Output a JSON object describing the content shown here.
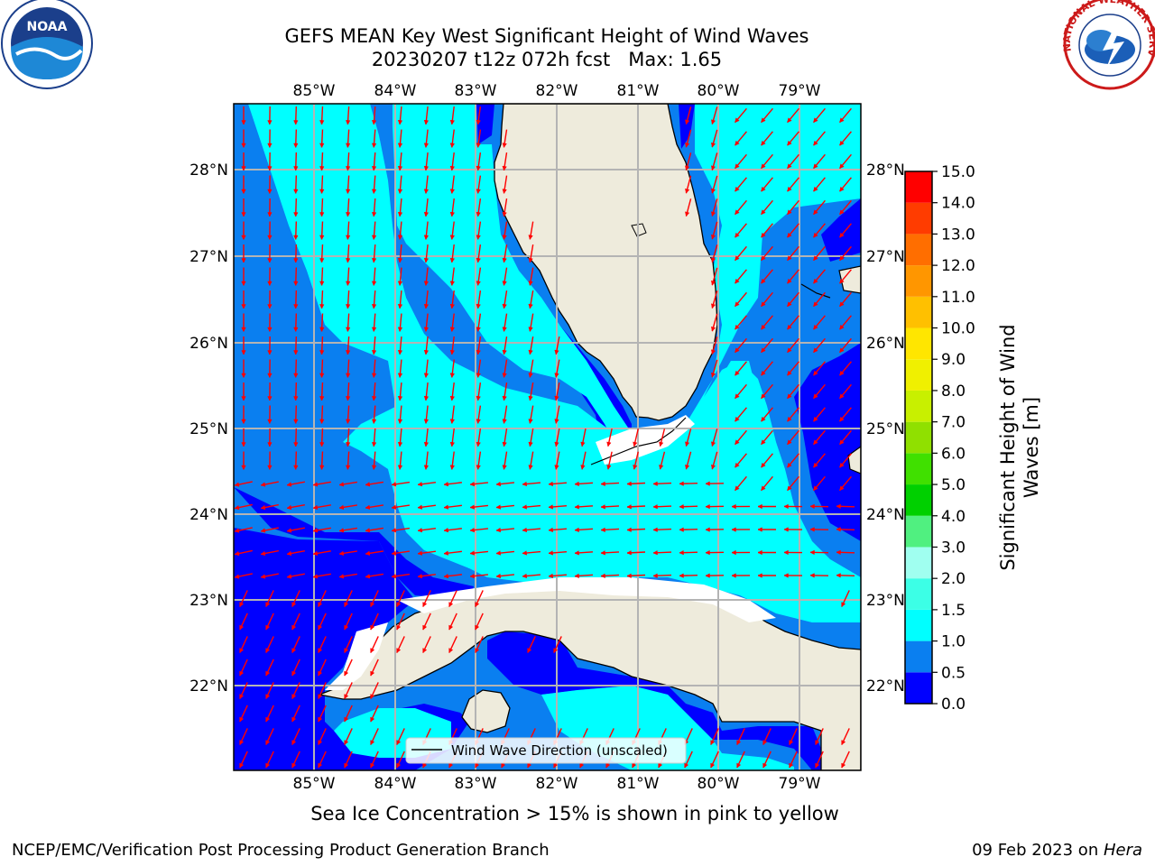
{
  "title_line1": "GEFS MEAN Key West Significant Height of Wind Waves",
  "title_line2": "20230207 t12z 072h fcst   Max: 1.65",
  "lon_ticks": [
    "85°W",
    "84°W",
    "83°W",
    "82°W",
    "81°W",
    "80°W",
    "79°W"
  ],
  "lat_ticks": [
    "28°N",
    "27°N",
    "26°N",
    "25°N",
    "24°N",
    "23°N",
    "22°N"
  ],
  "legend_label": "Wind Wave Direction (unscaled)",
  "colorbar": {
    "title": "Significant Height of Wind Waves [m]",
    "title_line1": "Significant Height of Wind",
    "title_line2": "Waves [m]",
    "ticks": [
      "0.0",
      "0.5",
      "1.0",
      "1.5",
      "2.0",
      "3.0",
      "4.0",
      "5.0",
      "6.0",
      "7.0",
      "8.0",
      "9.0",
      "10.0",
      "11.0",
      "12.0",
      "13.0",
      "14.0",
      "15.0"
    ],
    "colors": [
      "#0000ff",
      "#0a7ff0",
      "#00ffff",
      "#3cffe6",
      "#a0fff0",
      "#50f080",
      "#00d000",
      "#40e000",
      "#90e000",
      "#c8f000",
      "#f0f000",
      "#ffe600",
      "#ffc000",
      "#ff9600",
      "#ff6e00",
      "#ff3c00",
      "#ff0000"
    ]
  },
  "ice_note": "Sea Ice Concentration > 15% is shown in pink to yellow",
  "footer_left": "NCEP/EMC/Verification Post Processing Product Generation Branch",
  "footer_date": "09 Feb 2023 on ",
  "footer_machine": "Hera",
  "noaa_logo_text": "NOAA",
  "nws_logo_text": "NATIONAL WEATHER SERVICE",
  "colors": {
    "land": "#eeebdc",
    "deep": "#0000ff",
    "mid": "#0a7ff0",
    "cyan": "#00ffff",
    "arrow": "#ff0000",
    "grid": "#b4b4b4"
  }
}
